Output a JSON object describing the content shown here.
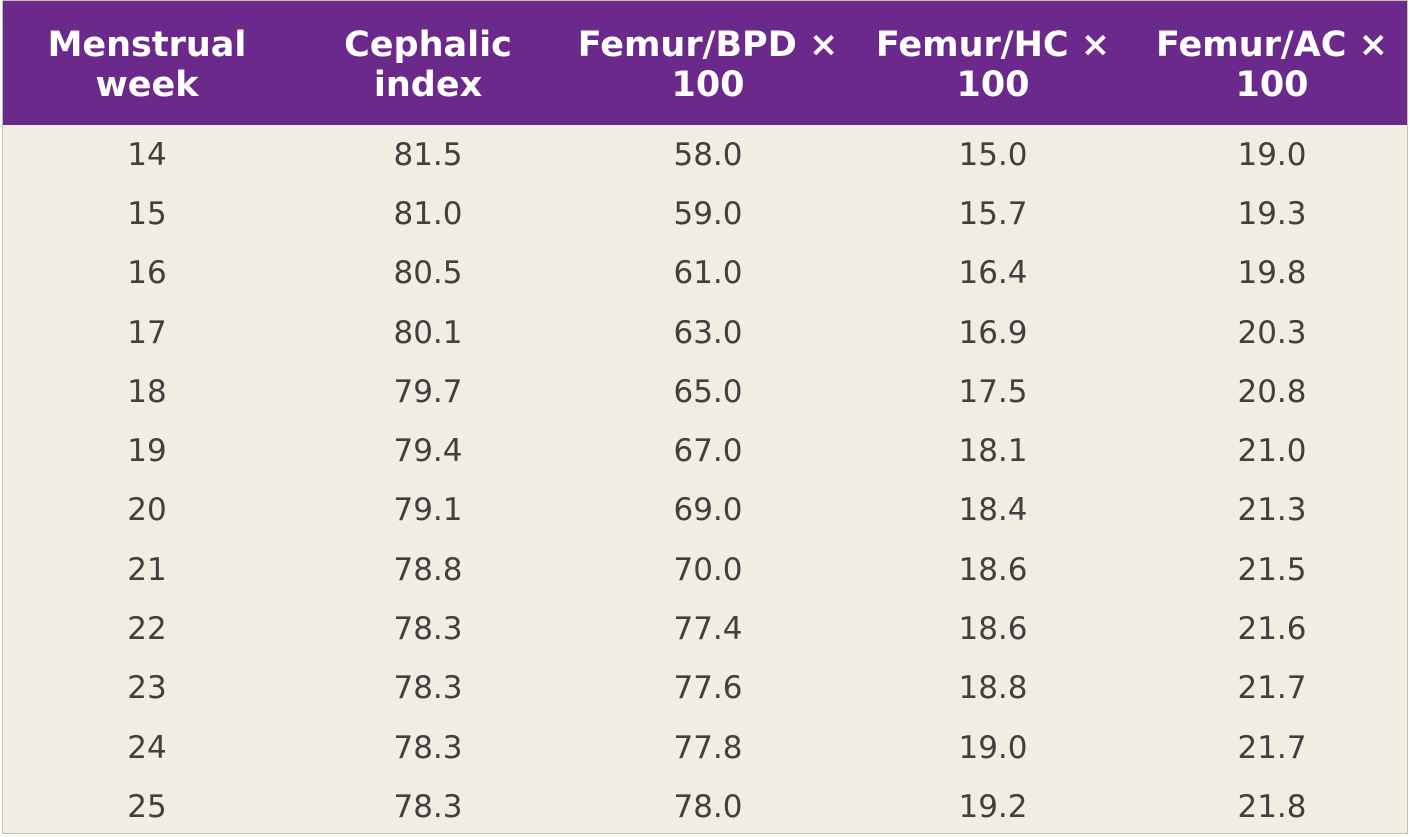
{
  "table": {
    "headers": [
      "Menstrual week",
      "Cephalic index",
      "Femur/BPD × 100",
      "Femur/HC × 100",
      "Femur/AC × 100"
    ],
    "rows": [
      [
        "14",
        "81.5",
        "58.0",
        "15.0",
        "19.0"
      ],
      [
        "15",
        "81.0",
        "59.0",
        "15.7",
        "19.3"
      ],
      [
        "16",
        "80.5",
        "61.0",
        "16.4",
        "19.8"
      ],
      [
        "17",
        "80.1",
        "63.0",
        "16.9",
        "20.3"
      ],
      [
        "18",
        "79.7",
        "65.0",
        "17.5",
        "20.8"
      ],
      [
        "19",
        "79.4",
        "67.0",
        "18.1",
        "21.0"
      ],
      [
        "20",
        "79.1",
        "69.0",
        "18.4",
        "21.3"
      ],
      [
        "21",
        "78.8",
        "70.0",
        "18.6",
        "21.5"
      ],
      [
        "22",
        "78.3",
        "77.4",
        "18.6",
        "21.6"
      ],
      [
        "23",
        "78.3",
        "77.6",
        "18.8",
        "21.7"
      ],
      [
        "24",
        "78.3",
        "77.8",
        "19.0",
        "21.7"
      ],
      [
        "25",
        "78.3",
        "78.0",
        "19.2",
        "21.8"
      ]
    ]
  },
  "colors": {
    "header_bg": "#6b2a8b",
    "header_text": "#ffffff",
    "body_bg": "#f1ede2",
    "body_text": "#404040"
  }
}
